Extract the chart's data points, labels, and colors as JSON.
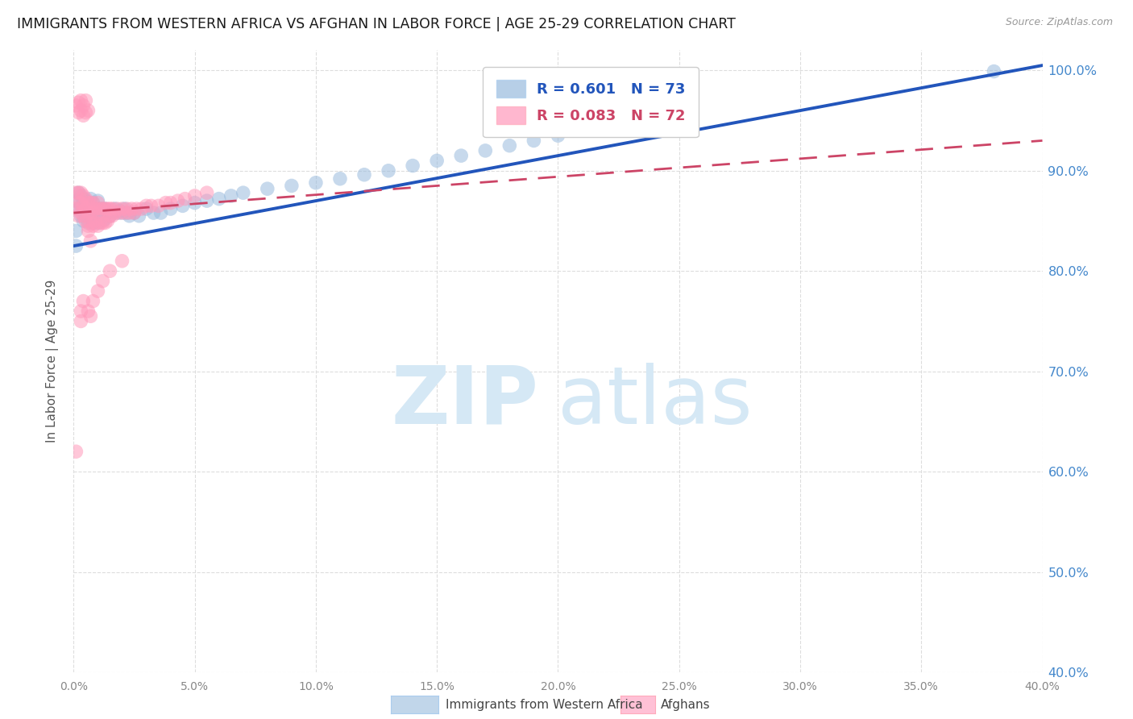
{
  "title": "IMMIGRANTS FROM WESTERN AFRICA VS AFGHAN IN LABOR FORCE | AGE 25-29 CORRELATION CHART",
  "source": "Source: ZipAtlas.com",
  "ylabel": "In Labor Force | Age 25-29",
  "xlim": [
    0.0,
    0.4
  ],
  "ylim": [
    0.4,
    1.02
  ],
  "ytick_positions": [
    0.4,
    0.5,
    0.6,
    0.7,
    0.8,
    0.9,
    1.0
  ],
  "ytick_labels": [
    "40.0%",
    "50.0%",
    "60.0%",
    "70.0%",
    "80.0%",
    "90.0%",
    "100.0%"
  ],
  "xtick_positions": [
    0.0,
    0.05,
    0.1,
    0.15,
    0.2,
    0.25,
    0.3,
    0.35,
    0.4
  ],
  "xtick_labels": [
    "0.0%",
    "5.0%",
    "10.0%",
    "15.0%",
    "20.0%",
    "25.0%",
    "30.0%",
    "35.0%",
    "40.0%"
  ],
  "blue_R": 0.601,
  "blue_N": 73,
  "pink_R": 0.083,
  "pink_N": 72,
  "blue_color": "#99BBDD",
  "pink_color": "#FF99BB",
  "blue_line_color": "#2255BB",
  "pink_line_color": "#CC4466",
  "grid_color": "#DDDDDD",
  "right_axis_color": "#4488CC",
  "blue_label": "Immigrants from Western Africa",
  "pink_label": "Afghans",
  "blue_scatter_x": [
    0.001,
    0.002,
    0.002,
    0.003,
    0.003,
    0.003,
    0.004,
    0.004,
    0.004,
    0.005,
    0.005,
    0.005,
    0.006,
    0.006,
    0.006,
    0.007,
    0.007,
    0.007,
    0.008,
    0.008,
    0.008,
    0.009,
    0.009,
    0.01,
    0.01,
    0.01,
    0.011,
    0.011,
    0.012,
    0.012,
    0.013,
    0.013,
    0.014,
    0.015,
    0.016,
    0.017,
    0.018,
    0.019,
    0.02,
    0.021,
    0.022,
    0.023,
    0.025,
    0.027,
    0.03,
    0.033,
    0.036,
    0.04,
    0.045,
    0.05,
    0.055,
    0.06,
    0.065,
    0.07,
    0.08,
    0.09,
    0.1,
    0.11,
    0.12,
    0.13,
    0.14,
    0.15,
    0.16,
    0.17,
    0.18,
    0.19,
    0.2,
    0.21,
    0.22,
    0.23,
    0.38,
    0.001,
    0.001
  ],
  "blue_scatter_y": [
    0.87,
    0.862,
    0.878,
    0.855,
    0.865,
    0.875,
    0.85,
    0.86,
    0.872,
    0.855,
    0.862,
    0.87,
    0.848,
    0.858,
    0.868,
    0.852,
    0.862,
    0.872,
    0.848,
    0.858,
    0.868,
    0.852,
    0.862,
    0.848,
    0.858,
    0.87,
    0.852,
    0.862,
    0.85,
    0.862,
    0.852,
    0.862,
    0.858,
    0.855,
    0.858,
    0.862,
    0.858,
    0.86,
    0.858,
    0.862,
    0.858,
    0.855,
    0.858,
    0.855,
    0.862,
    0.858,
    0.858,
    0.862,
    0.865,
    0.868,
    0.87,
    0.872,
    0.875,
    0.878,
    0.882,
    0.885,
    0.888,
    0.892,
    0.896,
    0.9,
    0.905,
    0.91,
    0.915,
    0.92,
    0.925,
    0.93,
    0.935,
    0.94,
    0.945,
    0.95,
    0.999,
    0.84,
    0.825
  ],
  "pink_scatter_x": [
    0.001,
    0.001,
    0.002,
    0.002,
    0.002,
    0.003,
    0.003,
    0.003,
    0.004,
    0.004,
    0.004,
    0.005,
    0.005,
    0.005,
    0.006,
    0.006,
    0.006,
    0.007,
    0.007,
    0.007,
    0.008,
    0.008,
    0.008,
    0.009,
    0.009,
    0.01,
    0.01,
    0.01,
    0.011,
    0.011,
    0.012,
    0.012,
    0.013,
    0.013,
    0.014,
    0.014,
    0.015,
    0.015,
    0.016,
    0.016,
    0.017,
    0.018,
    0.019,
    0.02,
    0.021,
    0.022,
    0.023,
    0.024,
    0.025,
    0.026,
    0.028,
    0.03,
    0.032,
    0.035,
    0.038,
    0.04,
    0.043,
    0.046,
    0.05,
    0.055,
    0.001,
    0.002,
    0.002,
    0.003,
    0.003,
    0.004,
    0.004,
    0.005,
    0.005,
    0.006,
    0.006,
    0.007
  ],
  "pink_scatter_y": [
    0.862,
    0.878,
    0.855,
    0.868,
    0.878,
    0.858,
    0.868,
    0.878,
    0.855,
    0.865,
    0.875,
    0.85,
    0.862,
    0.872,
    0.845,
    0.858,
    0.868,
    0.848,
    0.858,
    0.868,
    0.845,
    0.858,
    0.868,
    0.848,
    0.862,
    0.845,
    0.858,
    0.868,
    0.848,
    0.862,
    0.848,
    0.862,
    0.848,
    0.862,
    0.85,
    0.862,
    0.855,
    0.862,
    0.855,
    0.862,
    0.858,
    0.862,
    0.858,
    0.862,
    0.858,
    0.862,
    0.858,
    0.862,
    0.858,
    0.862,
    0.862,
    0.865,
    0.865,
    0.865,
    0.868,
    0.868,
    0.87,
    0.872,
    0.875,
    0.878,
    0.965,
    0.958,
    0.968,
    0.96,
    0.97,
    0.955,
    0.965,
    0.958,
    0.97,
    0.96,
    0.84,
    0.83
  ],
  "pink_outliers_x": [
    0.001,
    0.003,
    0.003,
    0.004,
    0.006,
    0.007,
    0.008,
    0.01,
    0.012,
    0.015,
    0.02
  ],
  "pink_outliers_y": [
    0.62,
    0.75,
    0.76,
    0.77,
    0.76,
    0.755,
    0.77,
    0.78,
    0.79,
    0.8,
    0.81
  ],
  "blue_line_x0": 0.0,
  "blue_line_y0": 0.825,
  "blue_line_x1": 0.4,
  "blue_line_y1": 1.005,
  "pink_line_x0": 0.0,
  "pink_line_y0": 0.858,
  "pink_line_x1": 0.4,
  "pink_line_y1": 0.93
}
